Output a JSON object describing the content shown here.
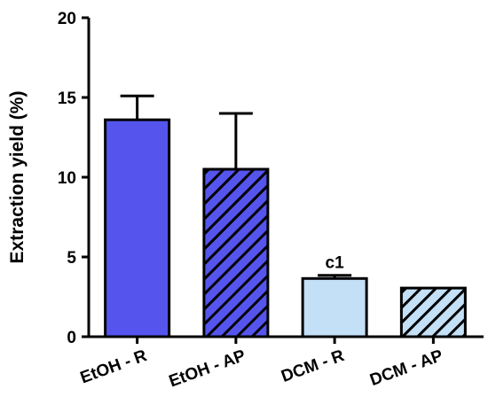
{
  "chart_data": {
    "type": "bar",
    "categories": [
      "EtOH - R",
      "EtOH - AP",
      "DCM - R",
      "DCM - AP"
    ],
    "values": [
      13.6,
      10.5,
      3.65,
      3.05
    ],
    "errors": [
      1.5,
      3.5,
      0.2,
      0
    ],
    "fills": [
      "solid",
      "hatched",
      "solid",
      "hatched"
    ],
    "colors": [
      "#5555ee",
      "#5555ee",
      "#c4e0f7",
      "#c4e0f7"
    ],
    "annotations": [
      {
        "category": "DCM - R",
        "text": "c1"
      }
    ],
    "ylabel": "Extraction yield (%)",
    "xlabel": "",
    "ylim": [
      0,
      20
    ],
    "yticks": [
      0,
      5,
      10,
      15,
      20
    ],
    "grid": false,
    "legend": "none"
  }
}
